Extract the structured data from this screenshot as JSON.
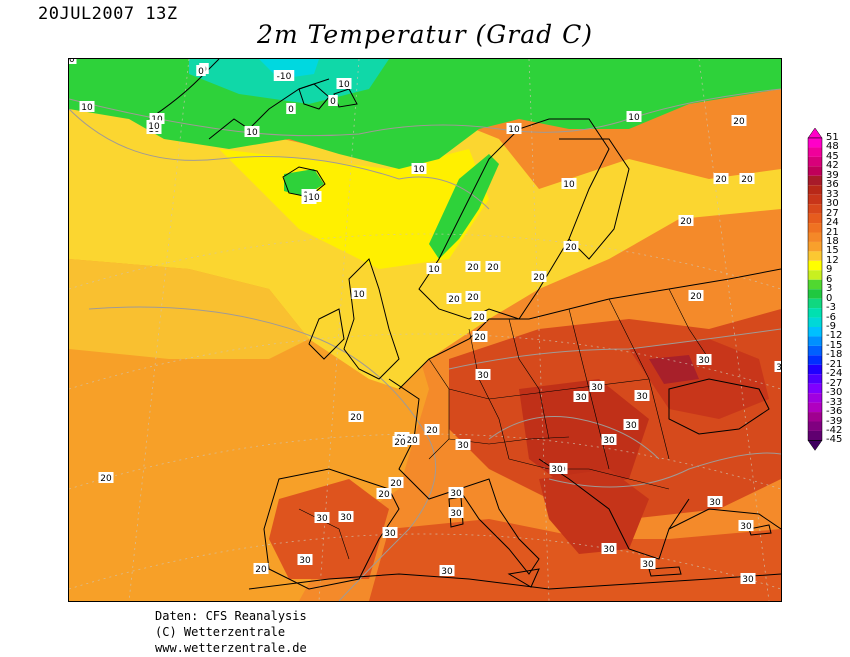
{
  "header": {
    "datetime": "20JUL2007 13Z",
    "title": "2m Temperatur (Grad C)"
  },
  "credits": {
    "line1": "Daten: CFS Reanalysis",
    "line2": "(C) Wetterzentrale",
    "line3": "www.wetterzentrale.de"
  },
  "colorbar": {
    "levels": [
      "51",
      "48",
      "45",
      "42",
      "39",
      "36",
      "33",
      "30",
      "27",
      "24",
      "21",
      "18",
      "15",
      "12",
      "9",
      "6",
      "3",
      "0",
      "-3",
      "-6",
      "-9",
      "-12",
      "-15",
      "-18",
      "-21",
      "-24",
      "-27",
      "-30",
      "-33",
      "-36",
      "-39",
      "-42",
      "-45"
    ],
    "colors": [
      "#ff00c8",
      "#f0009a",
      "#d8007a",
      "#c0005a",
      "#a81b2a",
      "#b82818",
      "#c8351a",
      "#d8481c",
      "#e65c1e",
      "#ef7222",
      "#f48828",
      "#f8a02c",
      "#fbc832",
      "#ffff00",
      "#c8f020",
      "#50d830",
      "#20c840",
      "#10d880",
      "#00e0b0",
      "#00d8d8",
      "#00c0ff",
      "#0090ff",
      "#0060ff",
      "#0030ff",
      "#2000ff",
      "#5000ff",
      "#8000ff",
      "#a000e0",
      "#b000c0",
      "#a00090",
      "#800080",
      "#600070",
      "#400060"
    ]
  },
  "map_labels": [
    {
      "text": "10"
    },
    {
      "text": "10"
    },
    {
      "text": "10"
    },
    {
      "text": "10"
    },
    {
      "text": "10"
    },
    {
      "text": "10"
    },
    {
      "text": "10"
    },
    {
      "text": "10"
    },
    {
      "text": "10"
    },
    {
      "text": "10"
    },
    {
      "text": "10"
    },
    {
      "text": "10"
    },
    {
      "text": "10"
    },
    {
      "text": "10"
    },
    {
      "text": "10"
    },
    {
      "text": "10"
    },
    {
      "text": "0"
    },
    {
      "text": "0"
    },
    {
      "text": "0"
    },
    {
      "text": "0"
    },
    {
      "text": "-10"
    },
    {
      "text": "20"
    },
    {
      "text": "20"
    },
    {
      "text": "20"
    },
    {
      "text": "20"
    },
    {
      "text": "20"
    },
    {
      "text": "20"
    },
    {
      "text": "20"
    },
    {
      "text": "20"
    },
    {
      "text": "20"
    },
    {
      "text": "20"
    },
    {
      "text": "20"
    },
    {
      "text": "20"
    },
    {
      "text": "20"
    },
    {
      "text": "20"
    },
    {
      "text": "20"
    },
    {
      "text": "20"
    },
    {
      "text": "20"
    },
    {
      "text": "20"
    },
    {
      "text": "20"
    },
    {
      "text": "20"
    },
    {
      "text": "20"
    },
    {
      "text": "20"
    },
    {
      "text": "30"
    },
    {
      "text": "30"
    },
    {
      "text": "30"
    },
    {
      "text": "30"
    },
    {
      "text": "30"
    },
    {
      "text": "30"
    },
    {
      "text": "30"
    },
    {
      "text": "30"
    },
    {
      "text": "30"
    },
    {
      "text": "30"
    },
    {
      "text": "30"
    },
    {
      "text": "30"
    },
    {
      "text": "30"
    },
    {
      "text": "30"
    },
    {
      "text": "30"
    },
    {
      "text": "30"
    },
    {
      "text": "30"
    },
    {
      "text": "30"
    },
    {
      "text": "30"
    },
    {
      "text": "30"
    },
    {
      "text": "30"
    },
    {
      "text": "30"
    },
    {
      "text": "30"
    },
    {
      "text": "30"
    }
  ]
}
